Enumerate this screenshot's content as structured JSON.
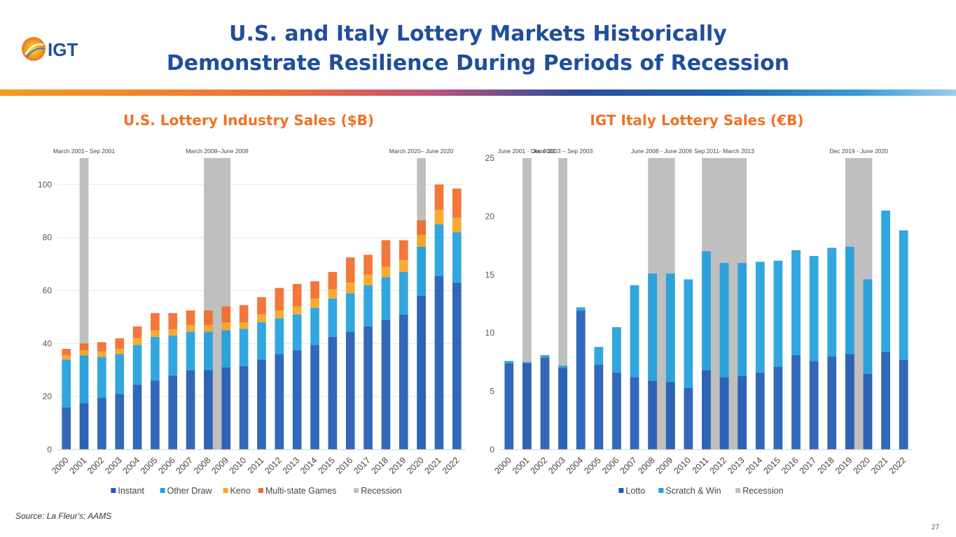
{
  "slide": {
    "title_line1": "U.S. and Italy Lottery Markets Historically",
    "title_line2": "Demonstrate Resilience During Periods of Recession",
    "logo_text": "IGT",
    "left_subtitle": "U.S. Lottery Industry Sales ($B)",
    "right_subtitle": "IGT Italy Lottery Sales (€B)",
    "source": "Source: La Fleur's; AAMS",
    "page_number": "27"
  },
  "colors": {
    "title": "#1f4e9c",
    "subtitle": "#ef7125",
    "recession": "#bfbfbf"
  },
  "chart_data": [
    {
      "type": "bar",
      "stacked": true,
      "categories": [
        "2000",
        "2001",
        "2002",
        "2003",
        "2004",
        "2005",
        "2006",
        "2007",
        "2008",
        "2009",
        "2010",
        "2011",
        "2012",
        "2013",
        "2014",
        "2015",
        "2016",
        "2017",
        "2018",
        "2019",
        "2020",
        "2021",
        "2022"
      ],
      "series": [
        {
          "name": "Instant",
          "color": "#1f5bb4",
          "values": [
            16,
            17.5,
            19.5,
            21,
            24.5,
            26,
            28,
            30,
            30,
            31,
            31.5,
            34,
            36,
            37.5,
            39.5,
            42.5,
            44.5,
            46.5,
            49,
            51,
            58,
            65.5,
            63
          ]
        },
        {
          "name": "Other Draw",
          "color": "#21a0dc",
          "values": [
            18,
            18,
            15.5,
            15,
            15,
            16.5,
            15,
            14.5,
            14.5,
            14,
            14,
            14,
            13.5,
            13.5,
            14,
            14.5,
            14.5,
            15.5,
            16,
            16,
            18.5,
            19.5,
            19
          ]
        },
        {
          "name": "Keno",
          "color": "#f5a51f",
          "values": [
            1.5,
            2,
            2,
            2,
            2.5,
            2.5,
            2.5,
            2.5,
            2.5,
            3,
            2.5,
            3,
            3,
            3,
            3.5,
            3.5,
            4,
            4,
            4,
            4.5,
            4.5,
            5.5,
            5.5
          ]
        },
        {
          "name": "Multi-state Games",
          "color": "#f26b2a",
          "values": [
            2.5,
            2.5,
            3.5,
            4,
            4.5,
            6.5,
            6,
            5.5,
            5.5,
            6,
            6.5,
            6.5,
            8.5,
            8.5,
            6.5,
            6.5,
            9.5,
            7.5,
            10,
            7.5,
            5.5,
            9.5,
            11
          ]
        }
      ],
      "recession_series_name": "Recession",
      "recession_periods": [
        {
          "category": "2001",
          "label": "March 2001– Sep 2001"
        },
        {
          "category": "2008",
          "category_end": "2009",
          "label": "March 2008–June 2009"
        },
        {
          "category": "2020",
          "label": "March 2020– June 2020"
        }
      ],
      "ylim": [
        0,
        110
      ],
      "yticks": [
        0,
        20,
        40,
        60,
        80,
        100
      ],
      "legend": "bottom"
    },
    {
      "type": "bar",
      "stacked": true,
      "categories": [
        "2000",
        "2001",
        "2002",
        "2003",
        "2004",
        "2005",
        "2006",
        "2007",
        "2008",
        "2009",
        "2010",
        "2011",
        "2012",
        "2013",
        "2014",
        "2015",
        "2016",
        "2017",
        "2018",
        "2019",
        "2020",
        "2021",
        "2022"
      ],
      "series": [
        {
          "name": "Lotto",
          "color": "#1f5bb4",
          "values": [
            7.4,
            7.4,
            7.9,
            7,
            11.9,
            7.3,
            6.6,
            6.2,
            5.9,
            5.8,
            5.3,
            6.8,
            6.2,
            6.3,
            6.6,
            7.1,
            8.1,
            7.6,
            8,
            8.2,
            6.5,
            8.4,
            7.7
          ]
        },
        {
          "name": "Scratch & Win",
          "color": "#21a0dc",
          "values": [
            0.2,
            0.1,
            0.2,
            0.2,
            0.3,
            1.5,
            3.9,
            7.9,
            9.2,
            9.3,
            9.3,
            10.2,
            9.8,
            9.7,
            9.5,
            9.1,
            9,
            9,
            9.3,
            9.2,
            8.1,
            12.1,
            11.1
          ]
        }
      ],
      "recession_series_name": "Recession",
      "recession_periods": [
        {
          "category": "2001",
          "label": "June 2001 - Dec 2001"
        },
        {
          "category": "2003",
          "label": "June 2003 – Sep 2003"
        },
        {
          "category": "2008",
          "category_end": "2009",
          "label": "June 2008 - June 2009"
        },
        {
          "category": "2011",
          "category_end": "2013",
          "label": "Sep 2011- March 2013"
        },
        {
          "category": "2019",
          "category_end": "2020",
          "label": "Dec 2019 - June 2020"
        }
      ],
      "ylim": [
        0,
        25
      ],
      "yticks": [
        0,
        5,
        10,
        15,
        20,
        25
      ],
      "legend": "bottom"
    }
  ]
}
